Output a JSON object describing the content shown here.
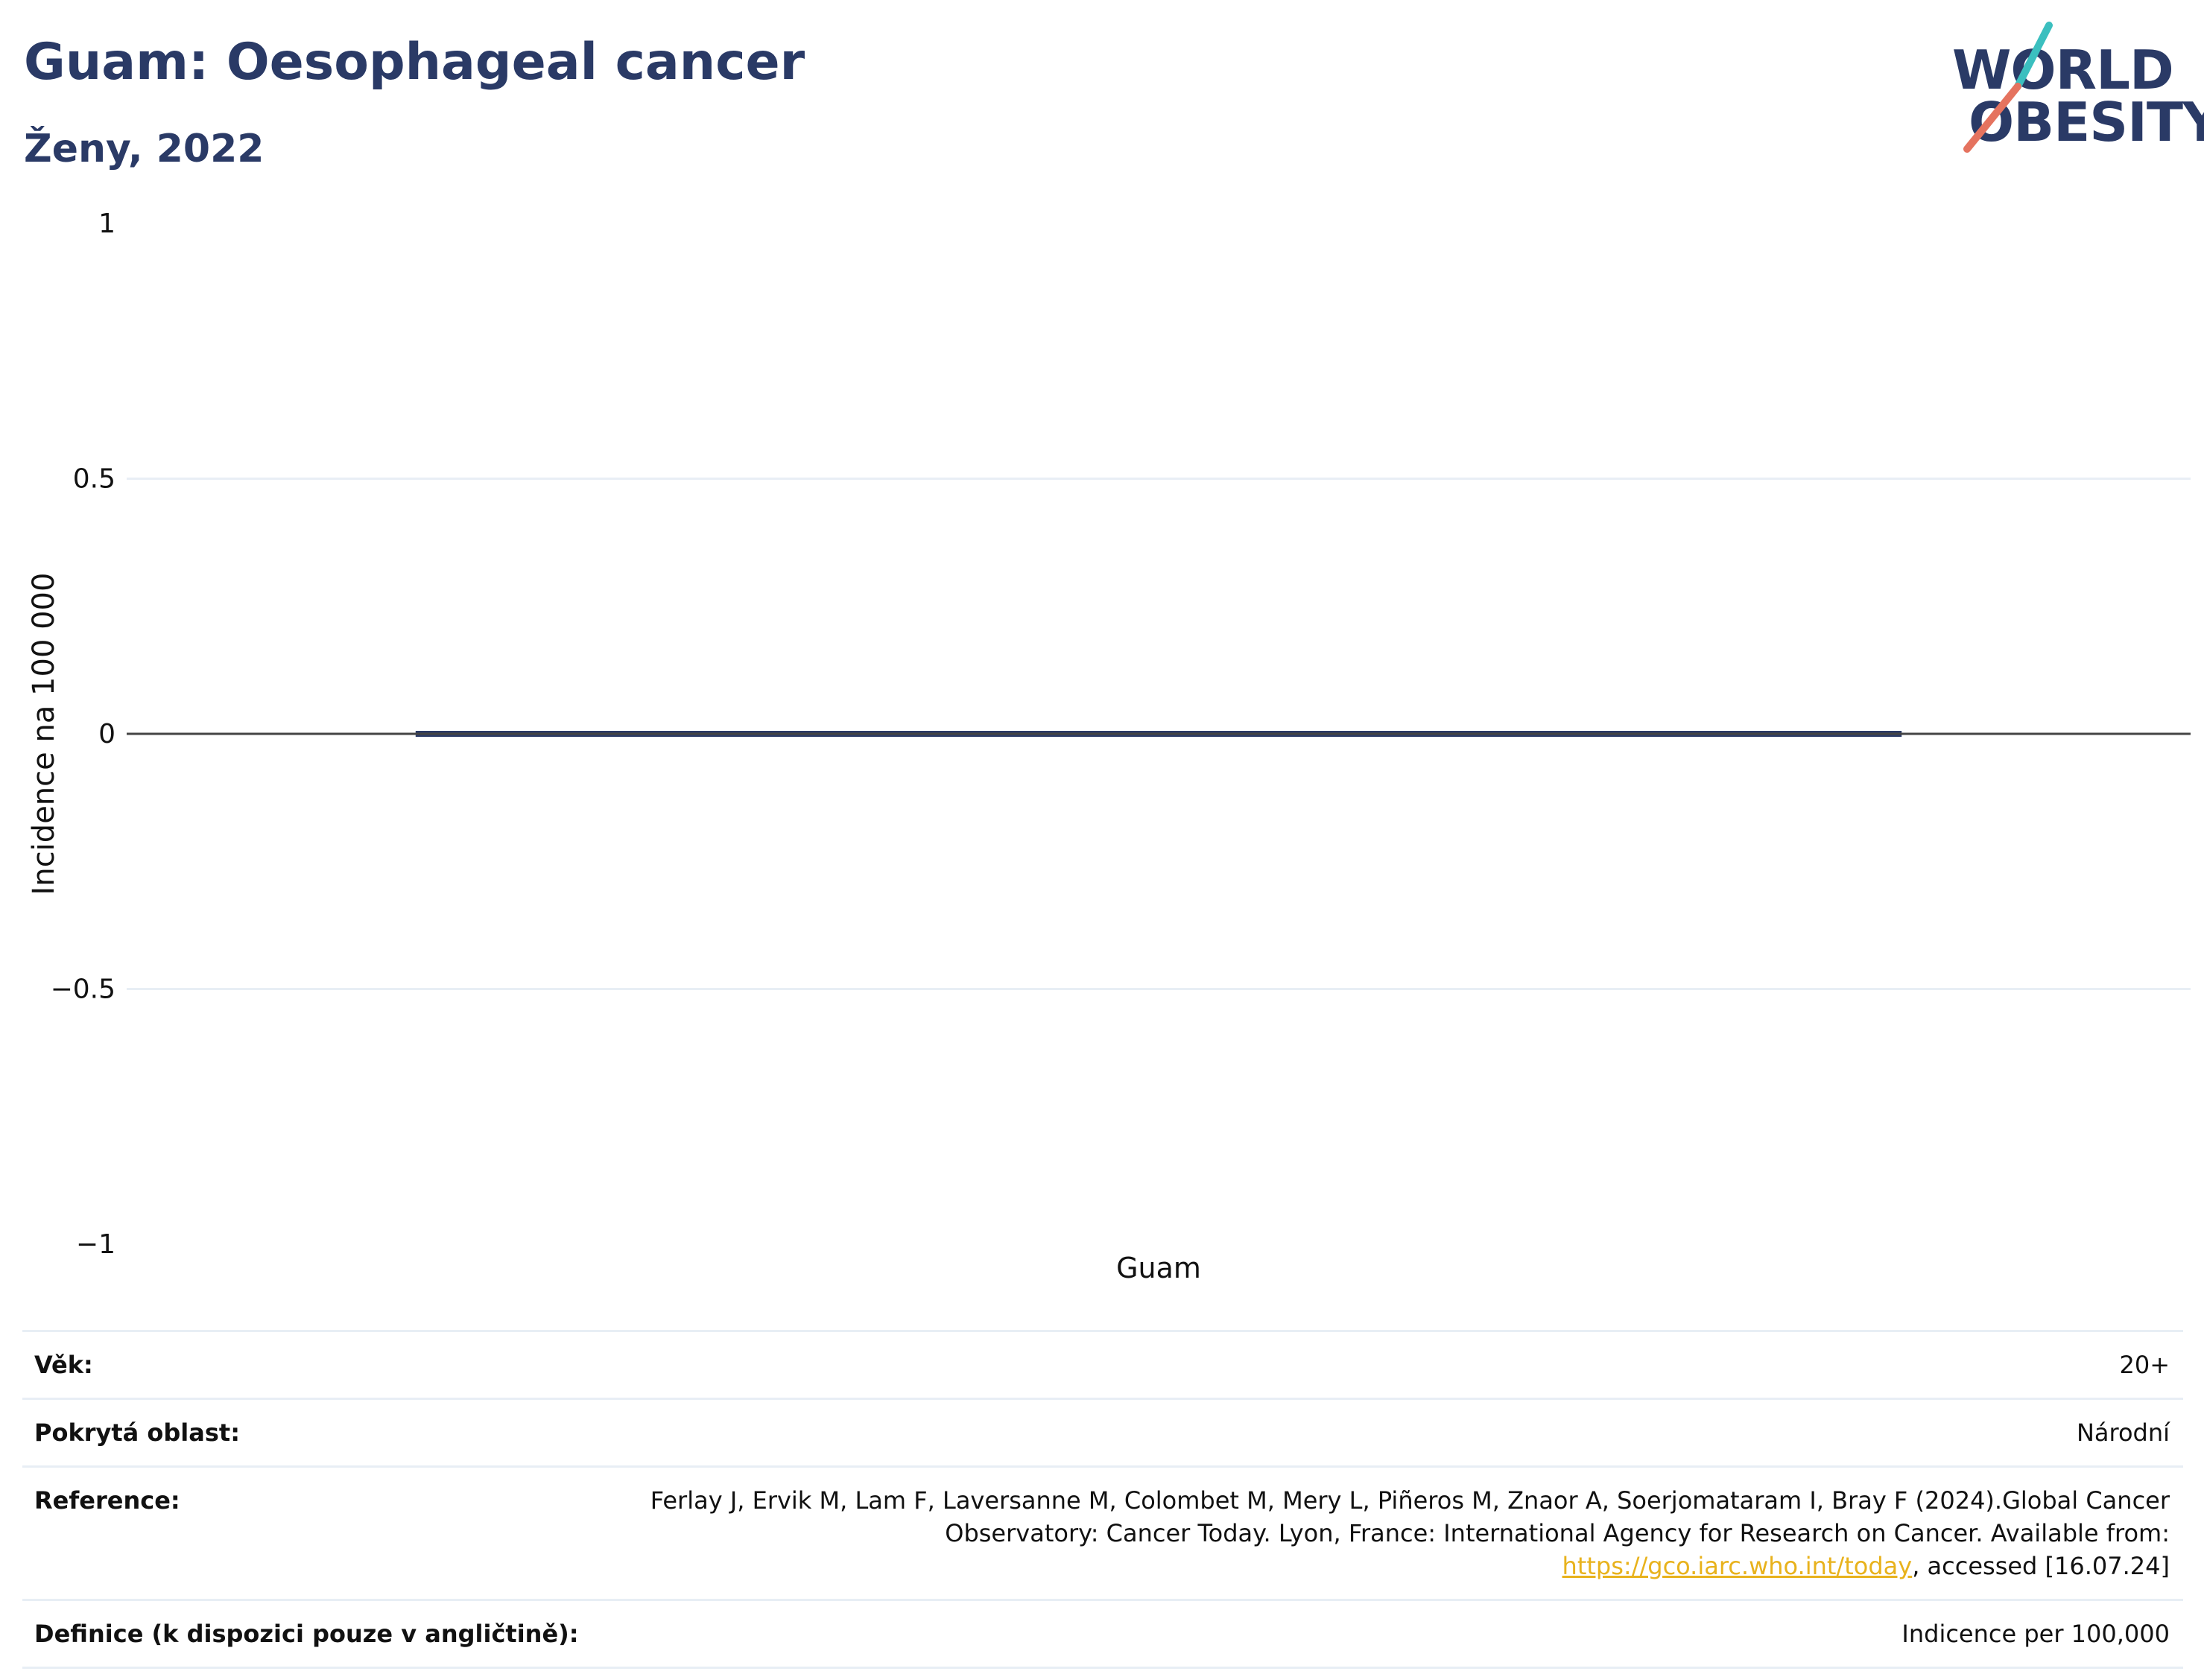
{
  "header": {
    "title": "Guam: Oesophageal cancer",
    "subtitle": "Ženy, 2022"
  },
  "logo": {
    "line1": "WORLD",
    "line2": "OBESITY",
    "colors": {
      "text": "#2a3a66",
      "slash_top": "#3bbfbf",
      "slash_bottom": "#e5735f"
    }
  },
  "chart_data": {
    "type": "bar",
    "categories": [
      "Guam"
    ],
    "series": [
      {
        "values": [
          0
        ]
      }
    ],
    "ylabel": "Incidence na 100 000",
    "xlabel": "",
    "ylim": [
      -1,
      1
    ],
    "yticks": [
      1,
      0.5,
      0,
      -0.5,
      -1
    ],
    "ytick_labels": [
      "1",
      "0.5",
      "0",
      "−0.5",
      "−1"
    ],
    "grid": true,
    "legend": "none",
    "colors": {
      "bar": "#2a3a66",
      "grid": "#e8eef5",
      "zero_line": "#444444",
      "text": "#111111"
    }
  },
  "meta": {
    "age": {
      "label": "Věk:",
      "value": "20+"
    },
    "coverage": {
      "label": "Pokrytá oblast:",
      "value": "Národní"
    },
    "reference": {
      "label": "Reference:",
      "text_before": "Ferlay J, Ervik M, Lam F, Laversanne M, Colombet M, Mery L, Piñeros M, Znaor A, Soerjomataram I, Bray F (2024).Global Cancer Observatory: Cancer Today. Lyon, France: International Agency for Research on Cancer. Available from: ",
      "link": "https://gco.iarc.who.int/today",
      "text_after": ", accessed [16.07.24]"
    },
    "definition": {
      "label": "Definice (k dispozici pouze v angličtině):",
      "value": "Indicence per 100,000"
    }
  }
}
